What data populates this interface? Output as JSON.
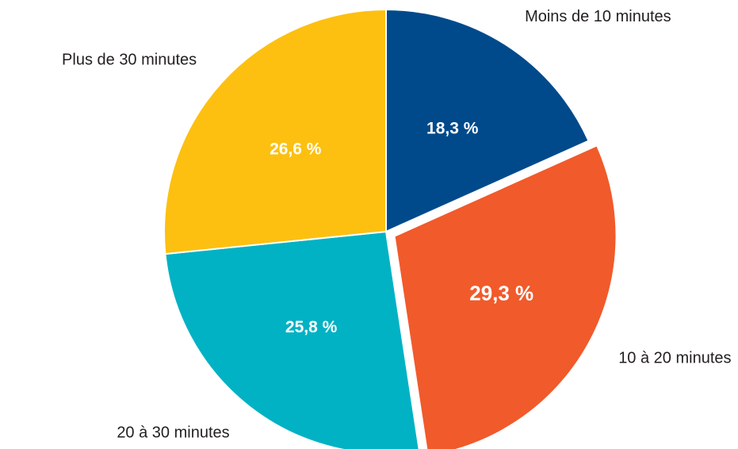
{
  "chart_data": {
    "type": "pie",
    "categories": [
      "Moins de 10 minutes",
      "10 à 20 minutes",
      "20 à 30 minutes",
      "Plus de 30 minutes"
    ],
    "values": [
      18.3,
      29.3,
      25.8,
      26.6
    ],
    "value_labels": [
      "18,3 %",
      "29,3 %",
      "25,8 %",
      "26,6 %"
    ],
    "colors": [
      "#004a8b",
      "#f15a2b",
      "#00b2c4",
      "#fdc010"
    ],
    "explode": [
      false,
      true,
      false,
      false
    ]
  }
}
